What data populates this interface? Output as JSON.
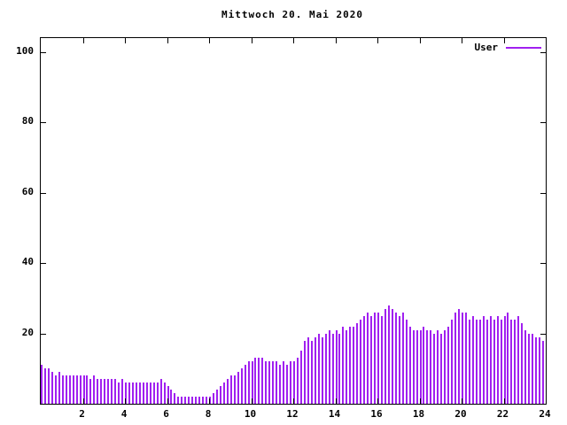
{
  "title": "Mittwoch 20. Mai 2020",
  "legend": {
    "label": "User"
  },
  "colors": {
    "series": "#a020f0",
    "axis": "#000000",
    "background": "#ffffff"
  },
  "chart_data": {
    "type": "bar",
    "style": "impulses",
    "title": "Mittwoch 20. Mai 2020",
    "xlabel": "",
    "ylabel": "",
    "xlim": [
      0,
      24
    ],
    "ylim": [
      0,
      104
    ],
    "x_ticks": [
      2,
      4,
      6,
      8,
      10,
      12,
      14,
      16,
      18,
      20,
      22,
      24
    ],
    "y_ticks": [
      20,
      40,
      60,
      80,
      100
    ],
    "grid": false,
    "legend_position": "top-right",
    "x_start_hours": 0,
    "x_step_hours": 0.1666667,
    "series": [
      {
        "name": "User",
        "values": [
          11,
          10,
          10,
          9,
          8,
          9,
          8,
          8,
          8,
          8,
          8,
          8,
          8,
          8,
          7,
          8,
          7,
          7,
          7,
          7,
          7,
          7,
          6,
          7,
          6,
          6,
          6,
          6,
          6,
          6,
          6,
          6,
          6,
          6,
          7,
          6,
          5,
          4,
          3,
          2,
          2,
          2,
          2,
          2,
          2,
          2,
          2,
          2,
          2,
          3,
          4,
          5,
          6,
          7,
          8,
          8,
          9,
          10,
          11,
          12,
          12,
          13,
          13,
          13,
          12,
          12,
          12,
          12,
          11,
          12,
          11,
          12,
          12,
          13,
          15,
          18,
          19,
          18,
          19,
          20,
          19,
          20,
          21,
          20,
          21,
          20,
          22,
          21,
          22,
          22,
          23,
          24,
          25,
          26,
          25,
          26,
          26,
          25,
          27,
          28,
          27,
          26,
          25,
          26,
          24,
          22,
          21,
          21,
          21,
          22,
          21,
          21,
          20,
          21,
          20,
          21,
          22,
          24,
          26,
          27,
          26,
          26,
          24,
          25,
          24,
          24,
          25,
          24,
          25,
          24,
          25,
          24,
          25,
          26,
          24,
          24,
          25,
          23,
          21,
          20,
          20,
          19,
          19,
          18
        ]
      }
    ]
  }
}
